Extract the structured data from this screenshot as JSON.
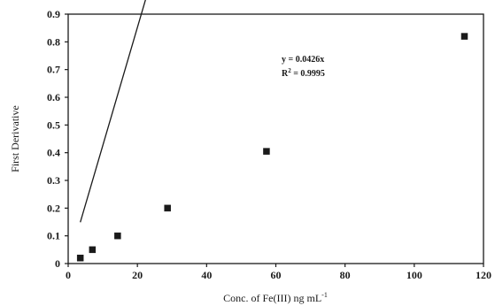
{
  "chart_data": {
    "type": "scatter",
    "title": "",
    "xlabel": "Conc. of Fe(III) ng mL",
    "xlabel_sup": "-1",
    "ylabel": "First Derivative",
    "xlim": [
      0,
      120
    ],
    "ylim": [
      0,
      0.9
    ],
    "x_ticks": [
      0,
      20,
      40,
      60,
      80,
      100,
      120
    ],
    "y_ticks": [
      0,
      0.1,
      0.2,
      0.3,
      0.4,
      0.5,
      0.6,
      0.7,
      0.8,
      0.9
    ],
    "x_tick_labels": [
      "0",
      "20",
      "40",
      "60",
      "80",
      "100",
      "120"
    ],
    "y_tick_labels": [
      "0",
      "0.1",
      "0.2",
      "0.3",
      "0.4",
      "0.5",
      "0.6",
      "0.7",
      "0.8",
      "0.9"
    ],
    "grid": false,
    "legend": "none",
    "marker": "square",
    "series": [
      {
        "x": [
          3.5,
          7.0,
          14.3,
          28.7,
          57.3,
          114.5
        ],
        "y": [
          0.02,
          0.05,
          0.1,
          0.2,
          0.405,
          0.82
        ]
      }
    ],
    "fit_line": {
      "slope": 0.0426,
      "intercept": 0,
      "x_range": [
        3.5,
        114.5
      ]
    },
    "annotations": {
      "equation": "y = 0.0426x",
      "r2_prefix": "R",
      "r2_sup": "2",
      "r2_value": " = 0.9995"
    }
  },
  "colors": {
    "ink": "#1a1a1a",
    "background": "#ffffff"
  }
}
